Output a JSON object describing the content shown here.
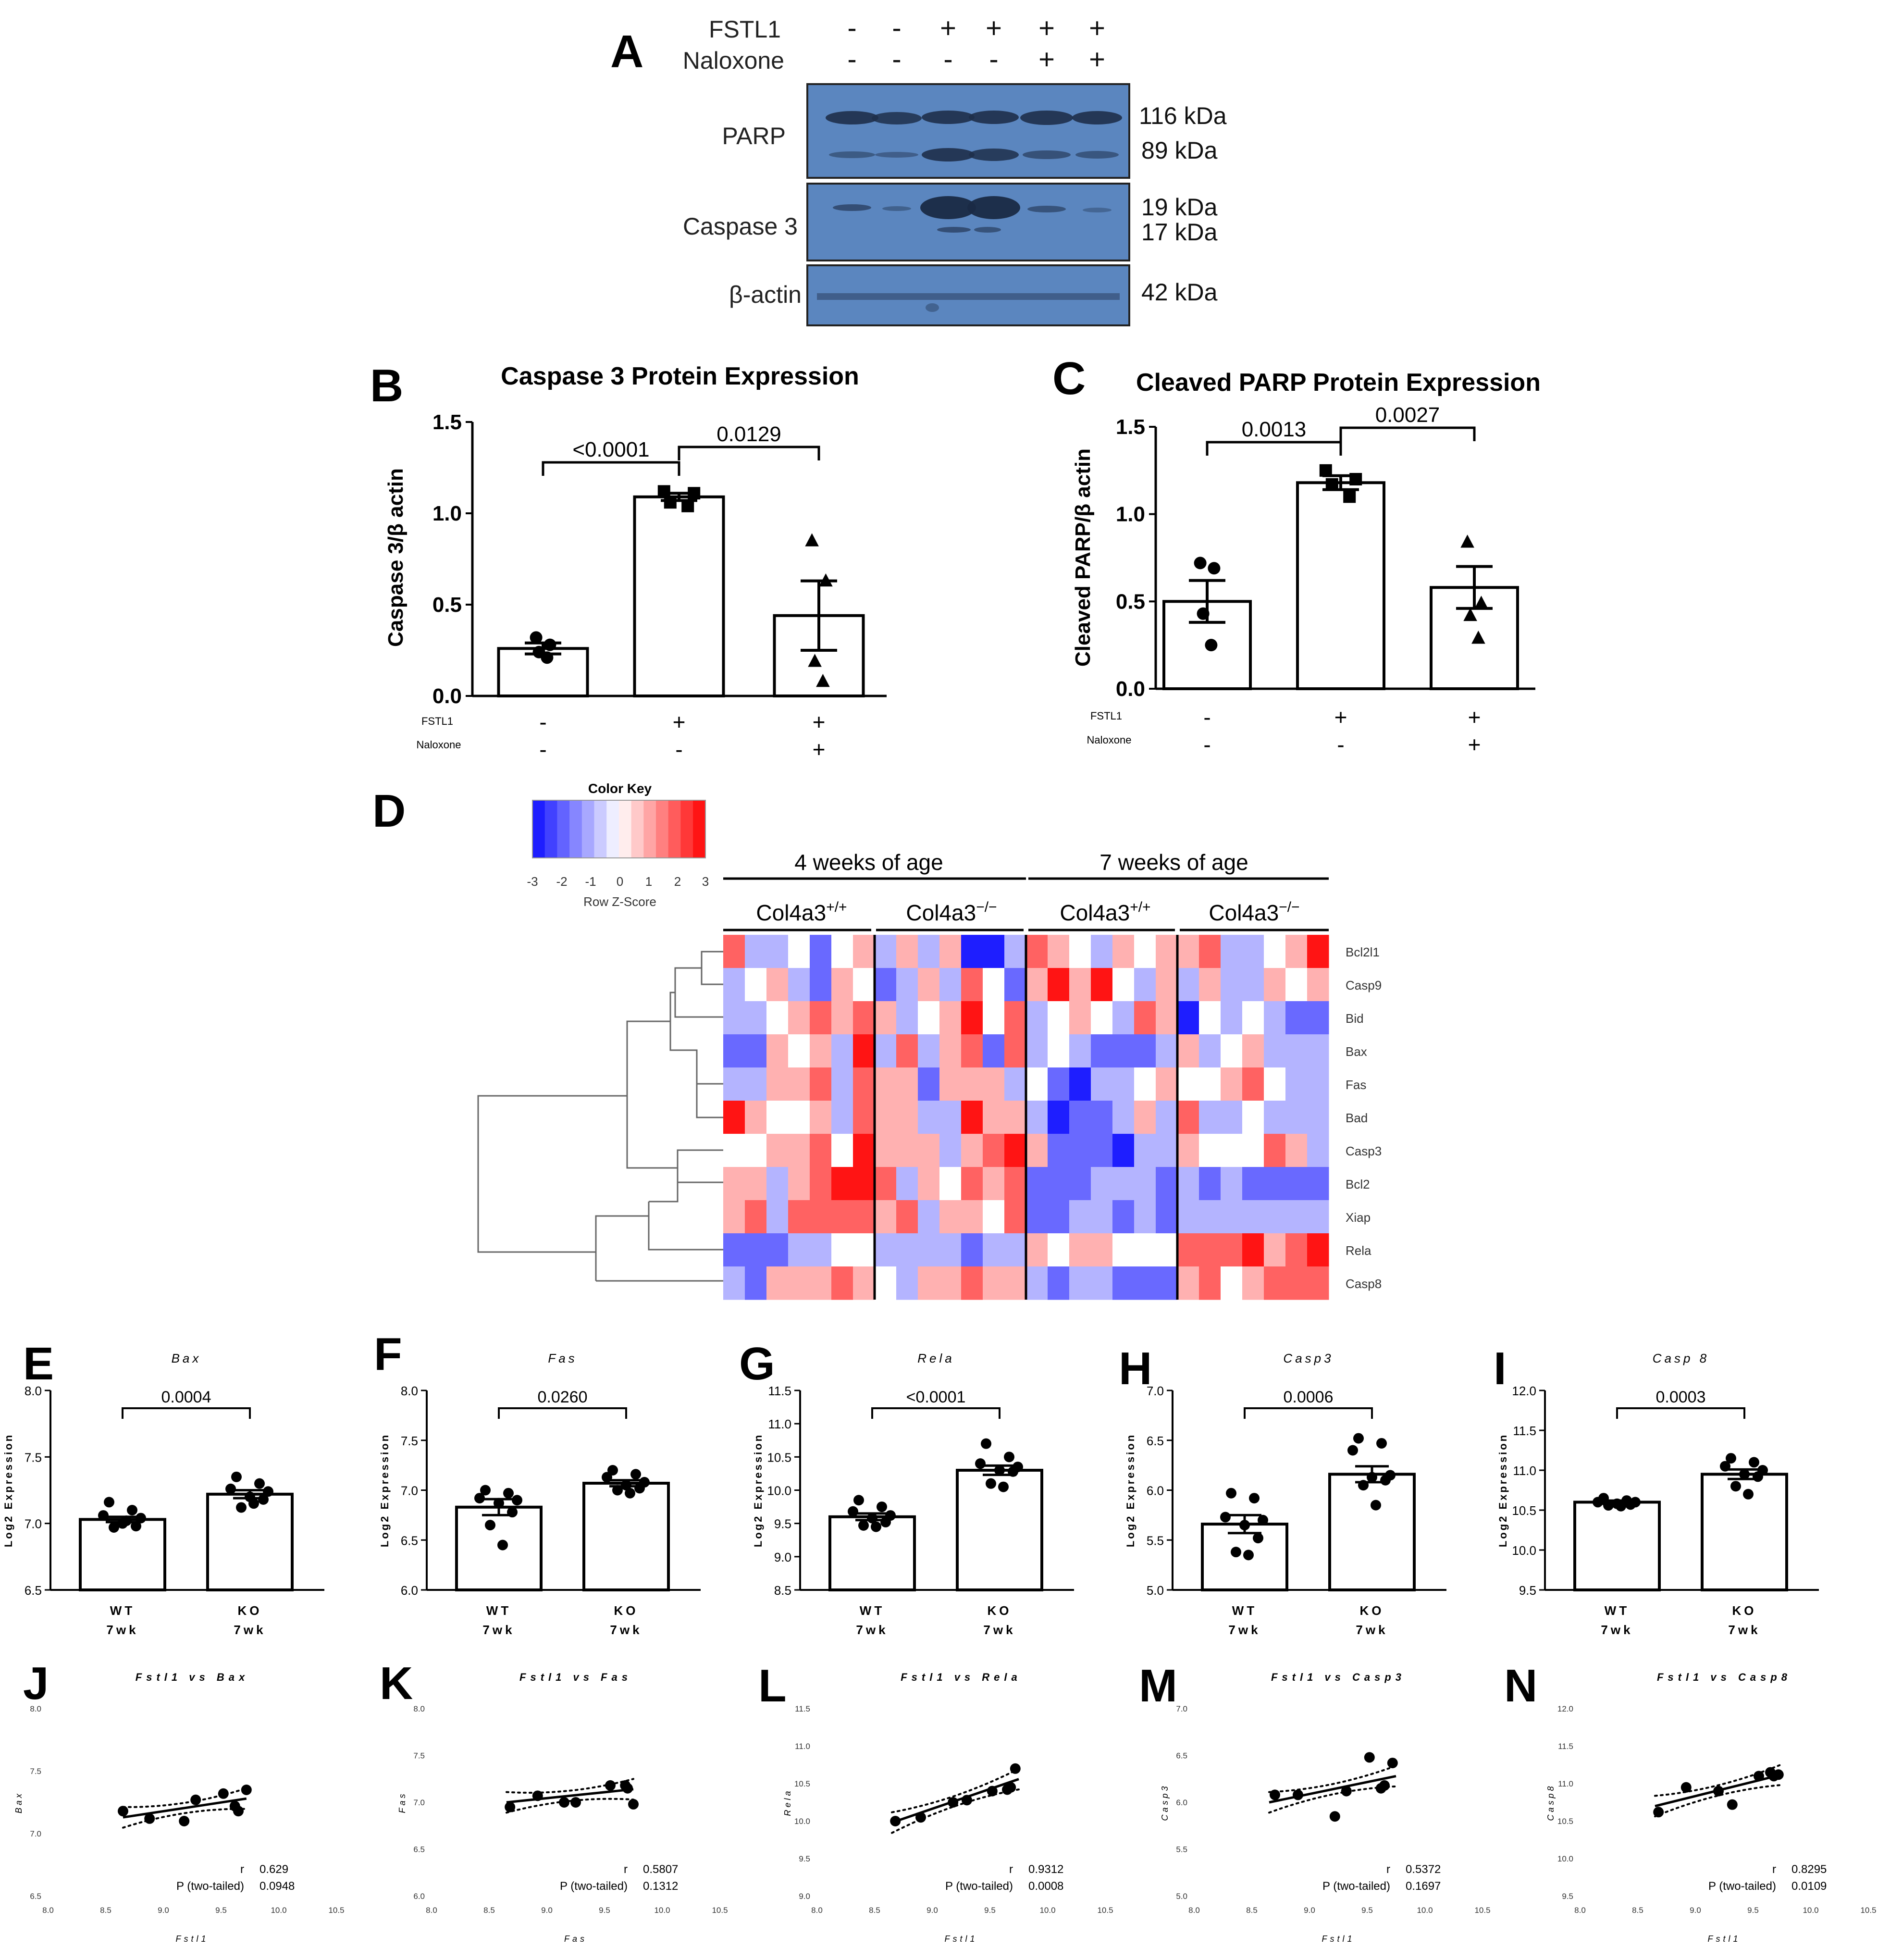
{
  "panel_letters": {
    "A": "A",
    "B": "B",
    "C": "C",
    "D": "D",
    "E": "E",
    "F": "F",
    "G": "G",
    "H": "H",
    "I": "I",
    "J": "J",
    "K": "K",
    "L": "L",
    "M": "M",
    "N": "N"
  },
  "blot": {
    "lanes": [
      {
        "fstl1": "-",
        "naloxone": "-"
      },
      {
        "fstl1": "-",
        "naloxone": "-"
      },
      {
        "fstl1": "+",
        "naloxone": "-"
      },
      {
        "fstl1": "+",
        "naloxone": "-"
      },
      {
        "fstl1": "+",
        "naloxone": "+"
      },
      {
        "fstl1": "+",
        "naloxone": "+"
      }
    ],
    "row_fstl1": "FSTL1",
    "row_naloxone": "Naloxone",
    "rows": [
      {
        "label": "PARP",
        "sizes": [
          "116 kDa",
          "89 kDa"
        ]
      },
      {
        "label": "Caspase 3",
        "sizes": [
          "19 kDa",
          "17 kDa"
        ]
      },
      {
        "label": "β-actin",
        "sizes": [
          "42 kDa"
        ]
      }
    ]
  },
  "chart_data": [
    {
      "panel": "B",
      "type": "bar",
      "title": "Caspase 3 Protein Expression",
      "ylabel": "Caspase 3/β actin",
      "ylim": [
        0,
        1.5
      ],
      "yticks": [
        "0.0",
        "0.5",
        "1.0",
        "1.5"
      ],
      "categories": [
        {
          "fstl1": "-",
          "naloxone": "-"
        },
        {
          "fstl1": "+",
          "naloxone": "-"
        },
        {
          "fstl1": "+",
          "naloxone": "+"
        }
      ],
      "row_labels": [
        "FSTL1",
        "Naloxone"
      ],
      "values": [
        0.26,
        1.09,
        0.44
      ],
      "sem": [
        0.03,
        0.02,
        0.19
      ],
      "points": [
        [
          0.32,
          0.28,
          0.24,
          0.21
        ],
        [
          1.12,
          1.11,
          1.06,
          1.04
        ],
        [
          0.85,
          0.63,
          0.19,
          0.08
        ]
      ],
      "markers": [
        "circle",
        "square",
        "triangle"
      ],
      "comparisons": [
        {
          "from": 0,
          "to": 1,
          "label": "<0.0001"
        },
        {
          "from": 1,
          "to": 2,
          "label": "0.0129"
        }
      ]
    },
    {
      "panel": "C",
      "type": "bar",
      "title": "Cleaved PARP Protein Expression",
      "ylabel": "Cleaved PARP/β actin",
      "ylim": [
        0,
        1.5
      ],
      "yticks": [
        "0.0",
        "0.5",
        "1.0",
        "1.5"
      ],
      "categories": [
        {
          "fstl1": "-",
          "naloxone": "-"
        },
        {
          "fstl1": "+",
          "naloxone": "-"
        },
        {
          "fstl1": "+",
          "naloxone": "+"
        }
      ],
      "row_labels": [
        "FSTL1",
        "Naloxone"
      ],
      "values": [
        0.5,
        1.18,
        0.58
      ],
      "sem": [
        0.12,
        0.04,
        0.12
      ],
      "points": [
        [
          0.72,
          0.69,
          0.43,
          0.25
        ],
        [
          1.25,
          1.2,
          1.17,
          1.1
        ],
        [
          0.84,
          0.49,
          0.42,
          0.29
        ]
      ],
      "markers": [
        "circle",
        "square",
        "triangle"
      ],
      "comparisons": [
        {
          "from": 0,
          "to": 1,
          "label": "0.0013"
        },
        {
          "from": 1,
          "to": 2,
          "label": "0.0027"
        }
      ]
    },
    {
      "panel": "D",
      "type": "heatmap",
      "color_key_title": "Color Key",
      "color_key_label": "Row Z-Score",
      "color_key_ticks": [
        "-3",
        "-2",
        "-1",
        "0",
        "1",
        "2",
        "3"
      ],
      "age_groups": [
        "4 weeks of age",
        "7 weeks of age"
      ],
      "genotype_base": "Col4a3",
      "genotypes": [
        "+/+",
        "−/−",
        "+/+",
        "−/−"
      ],
      "genes": [
        "Bcl2l1",
        "Casp9",
        "Bid",
        "Bax",
        "Fas",
        "Bad",
        "Casp3",
        "Bcl2",
        "Xiap",
        "Rela",
        "Casp8"
      ],
      "values": [
        [
          2,
          -1,
          -1,
          0,
          -2,
          0,
          1,
          -1,
          1,
          -1,
          1,
          -3,
          -3,
          -1,
          2,
          1,
          0,
          -1,
          1,
          0,
          1,
          1,
          2,
          -1,
          -1,
          0,
          1,
          3
        ],
        [
          -1,
          0,
          1,
          -1,
          -2,
          1,
          0,
          -2,
          -1,
          1,
          -1,
          2,
          0,
          -2,
          1,
          3,
          1,
          3,
          0,
          -1,
          1,
          -1,
          1,
          -1,
          -1,
          1,
          0,
          1
        ],
        [
          -1,
          -1,
          0,
          1,
          2,
          1,
          2,
          1,
          -1,
          0,
          1,
          3,
          0,
          2,
          -1,
          0,
          1,
          0,
          -1,
          2,
          1,
          -3,
          0,
          -1,
          0,
          -1,
          -2,
          -2
        ],
        [
          -2,
          -2,
          1,
          0,
          1,
          -1,
          3,
          -1,
          2,
          -1,
          1,
          2,
          -2,
          2,
          -1,
          0,
          -1,
          -2,
          -2,
          -2,
          -1,
          1,
          -1,
          0,
          1,
          -1,
          -1,
          -1
        ],
        [
          -1,
          -1,
          1,
          1,
          2,
          -1,
          2,
          1,
          1,
          -2,
          1,
          1,
          1,
          -1,
          0,
          -2,
          -3,
          -1,
          -1,
          0,
          1,
          0,
          0,
          1,
          2,
          0,
          -1,
          -1
        ],
        [
          3,
          1,
          0,
          0,
          1,
          -1,
          2,
          1,
          1,
          -1,
          -1,
          3,
          1,
          1,
          -1,
          -3,
          -2,
          -2,
          -1,
          1,
          -1,
          2,
          -1,
          -1,
          0,
          -1,
          -1,
          -1
        ],
        [
          0,
          0,
          1,
          1,
          2,
          0,
          3,
          1,
          1,
          1,
          -1,
          1,
          2,
          3,
          1,
          -2,
          -2,
          -2,
          -3,
          -1,
          -1,
          1,
          0,
          0,
          0,
          2,
          1,
          -1
        ],
        [
          1,
          1,
          -1,
          1,
          2,
          3,
          3,
          2,
          -1,
          1,
          0,
          2,
          1,
          2,
          -2,
          -2,
          -2,
          -1,
          -1,
          -1,
          -2,
          -1,
          -2,
          -1,
          -2,
          -2,
          -2,
          -2
        ],
        [
          1,
          2,
          -1,
          2,
          2,
          2,
          2,
          1,
          2,
          -1,
          1,
          1,
          0,
          2,
          -2,
          -2,
          -1,
          -1,
          -2,
          -1,
          -2,
          -1,
          -1,
          -1,
          -1,
          -1,
          -1,
          -1
        ],
        [
          -2,
          -2,
          -2,
          -1,
          -1,
          0,
          0,
          -1,
          -1,
          -1,
          -1,
          -2,
          -1,
          -1,
          1,
          0,
          1,
          1,
          0,
          0,
          0,
          2,
          2,
          2,
          3,
          1,
          2,
          3
        ],
        [
          -1,
          -2,
          1,
          1,
          1,
          2,
          1,
          0,
          -1,
          1,
          1,
          2,
          1,
          1,
          -1,
          -2,
          -1,
          -1,
          -2,
          -2,
          -2,
          1,
          2,
          0,
          1,
          2,
          2,
          2
        ]
      ]
    },
    {
      "panel": "E",
      "type": "bar",
      "title": "Bax",
      "ylabel": "Log2 Expression",
      "ylim": [
        6.5,
        8.0
      ],
      "yticks": [
        "6.5",
        "7.0",
        "7.5",
        "8.0"
      ],
      "categories": [
        [
          "WT",
          "7wk"
        ],
        [
          "KO",
          "7wk"
        ]
      ],
      "values": [
        7.03,
        7.22
      ],
      "sem": [
        0.02,
        0.03
      ],
      "points": [
        [
          7.16,
          7.1,
          7.06,
          7.04,
          7.0,
          6.98,
          6.97,
          7.02
        ],
        [
          7.35,
          7.3,
          7.26,
          7.24,
          7.2,
          7.18,
          7.12,
          7.15
        ]
      ],
      "comparisons": [
        {
          "from": 0,
          "to": 1,
          "label": "0.0004"
        }
      ]
    },
    {
      "panel": "F",
      "type": "bar",
      "title": "Fas",
      "ylabel": "Log2 Expression",
      "ylim": [
        6.0,
        8.0
      ],
      "yticks": [
        "6.0",
        "6.5",
        "7.0",
        "7.5",
        "8.0"
      ],
      "categories": [
        [
          "WT",
          "7wk"
        ],
        [
          "KO",
          "7wk"
        ]
      ],
      "values": [
        6.83,
        7.07
      ],
      "sem": [
        0.08,
        0.03
      ],
      "points": [
        [
          7.0,
          6.97,
          6.92,
          6.9,
          6.87,
          6.78,
          6.65,
          6.45
        ],
        [
          7.2,
          7.16,
          7.13,
          7.08,
          7.05,
          7.02,
          7.0,
          6.97
        ]
      ],
      "comparisons": [
        {
          "from": 0,
          "to": 1,
          "label": "0.0260"
        }
      ]
    },
    {
      "panel": "G",
      "type": "bar",
      "title": "Rela",
      "ylabel": "Log2 Expression",
      "ylim": [
        8.5,
        11.5
      ],
      "yticks": [
        "8.5",
        "9.0",
        "9.5",
        "10.0",
        "10.5",
        "11.0",
        "11.5"
      ],
      "categories": [
        [
          "WT",
          "7wk"
        ],
        [
          "KO",
          "7wk"
        ]
      ],
      "values": [
        9.6,
        10.3
      ],
      "sem": [
        0.05,
        0.07
      ],
      "points": [
        [
          9.85,
          9.75,
          9.68,
          9.62,
          9.58,
          9.52,
          9.47,
          9.45
        ],
        [
          10.7,
          10.5,
          10.4,
          10.35,
          10.3,
          10.28,
          10.1,
          10.05
        ]
      ],
      "comparisons": [
        {
          "from": 0,
          "to": 1,
          "label": "<0.0001"
        }
      ]
    },
    {
      "panel": "H",
      "type": "bar",
      "title": "Casp3",
      "ylabel": "Log2 Expression",
      "ylim": [
        5.0,
        7.0
      ],
      "yticks": [
        "5.0",
        "5.5",
        "6.0",
        "6.5",
        "7.0"
      ],
      "categories": [
        [
          "WT",
          "7wk"
        ],
        [
          "KO",
          "7wk"
        ]
      ],
      "values": [
        5.66,
        6.16
      ],
      "sem": [
        0.09,
        0.08
      ],
      "points": [
        [
          5.97,
          5.92,
          5.73,
          5.7,
          5.65,
          5.52,
          5.38,
          5.35
        ],
        [
          6.52,
          6.47,
          6.4,
          6.15,
          6.13,
          6.1,
          6.05,
          5.85
        ]
      ],
      "comparisons": [
        {
          "from": 0,
          "to": 1,
          "label": "0.0006"
        }
      ]
    },
    {
      "panel": "I",
      "type": "bar",
      "title": "Casp 8",
      "ylabel": "Log2 Expression",
      "ylim": [
        9.5,
        12.0
      ],
      "yticks": [
        "9.5",
        "10.0",
        "10.5",
        "11.0",
        "11.5",
        "12.0"
      ],
      "categories": [
        [
          "WT",
          "7wk"
        ],
        [
          "KO",
          "7wk"
        ]
      ],
      "values": [
        10.6,
        10.95
      ],
      "sem": [
        0.02,
        0.06
      ],
      "points": [
        [
          10.65,
          10.62,
          10.6,
          10.6,
          10.58,
          10.57,
          10.56,
          10.55
        ],
        [
          11.15,
          11.1,
          11.05,
          11.0,
          10.95,
          10.92,
          10.8,
          10.7
        ]
      ],
      "comparisons": [
        {
          "from": 0,
          "to": 1,
          "label": "0.0003"
        }
      ]
    },
    {
      "panel": "J",
      "type": "scatter",
      "title": "Fstl1 vs Bax",
      "xlabel": "Fstl1",
      "ylabel": "Bax",
      "xlim": [
        8.0,
        10.5
      ],
      "ylim": [
        6.5,
        8.0
      ],
      "xticks": [
        "8.0",
        "8.5",
        "9.0",
        "9.5",
        "10.0",
        "10.5"
      ],
      "yticks": [
        "6.5",
        "7.0",
        "7.5",
        "8.0"
      ],
      "x": [
        8.65,
        8.88,
        9.18,
        9.28,
        9.52,
        9.62,
        9.65,
        9.72
      ],
      "y": [
        7.18,
        7.12,
        7.1,
        7.27,
        7.32,
        7.22,
        7.18,
        7.35
      ],
      "fit": [
        [
          8.65,
          7.13
        ],
        [
          9.72,
          7.28
        ]
      ],
      "r_label": "r",
      "r": "0.629",
      "p_label": "P (two-tailed)",
      "p": "0.0948"
    },
    {
      "panel": "K",
      "type": "scatter",
      "title": "Fstl1 vs Fas",
      "xlabel": "Fas",
      "ylabel": "Fas",
      "xlim": [
        8.0,
        10.5
      ],
      "ylim": [
        6.0,
        8.0
      ],
      "xticks": [
        "8.0",
        "8.5",
        "9.0",
        "9.5",
        "10.0",
        "10.5"
      ],
      "yticks": [
        "6.0",
        "6.5",
        "7.0",
        "7.5",
        "8.0"
      ],
      "x": [
        8.68,
        8.92,
        9.15,
        9.25,
        9.55,
        9.68,
        9.7,
        9.75
      ],
      "y": [
        6.95,
        7.07,
        7.0,
        7.0,
        7.18,
        7.18,
        7.15,
        6.98
      ],
      "fit": [
        [
          8.65,
          7.0
        ],
        [
          9.75,
          7.14
        ]
      ],
      "r_label": "r",
      "r": "0.5807",
      "p_label": "P (two-tailed)",
      "p": "0.1312"
    },
    {
      "panel": "L",
      "type": "scatter",
      "title": "Fstl1 vs Rela",
      "xlabel": "Fstl1",
      "ylabel": "Rela",
      "xlim": [
        8.0,
        10.5
      ],
      "ylim": [
        9.0,
        11.5
      ],
      "xticks": [
        "8.0",
        "8.5",
        "9.0",
        "9.5",
        "10.0",
        "10.5"
      ],
      "yticks": [
        "9.0",
        "9.5",
        "10.0",
        "10.5",
        "11.0",
        "11.5"
      ],
      "x": [
        8.68,
        8.9,
        9.18,
        9.3,
        9.52,
        9.65,
        9.68,
        9.72
      ],
      "y": [
        10.0,
        10.05,
        10.25,
        10.28,
        10.4,
        10.42,
        10.45,
        10.7
      ],
      "fit": [
        [
          8.65,
          9.98
        ],
        [
          9.75,
          10.56
        ]
      ],
      "r_label": "r",
      "r": "0.9312",
      "p_label": "P (two-tailed)",
      "p": "0.0008"
    },
    {
      "panel": "M",
      "type": "scatter",
      "title": "Fstl1 vs Casp3",
      "xlabel": "Fstl1",
      "ylabel": "Casp3",
      "xlim": [
        8.0,
        10.5
      ],
      "ylim": [
        5.0,
        7.0
      ],
      "xticks": [
        "8.0",
        "8.5",
        "9.0",
        "9.5",
        "10.0",
        "10.5"
      ],
      "yticks": [
        "5.0",
        "5.5",
        "6.0",
        "6.5",
        "7.0"
      ],
      "x": [
        8.7,
        8.9,
        9.22,
        9.32,
        9.52,
        9.62,
        9.65,
        9.72
      ],
      "y": [
        6.08,
        6.08,
        5.85,
        6.12,
        6.48,
        6.15,
        6.18,
        6.42
      ],
      "fit": [
        [
          8.65,
          6.0
        ],
        [
          9.75,
          6.28
        ]
      ],
      "r_label": "r",
      "r": "0.5372",
      "p_label": "P (two-tailed)",
      "p": "0.1697"
    },
    {
      "panel": "N",
      "type": "scatter",
      "title": "Fstl1 vs Casp8",
      "xlabel": "Fstl1",
      "ylabel": "Casp8",
      "xlim": [
        8.0,
        10.5
      ],
      "ylim": [
        9.5,
        12.0
      ],
      "xticks": [
        "8.0",
        "8.5",
        "9.0",
        "9.5",
        "10.0",
        "10.5"
      ],
      "yticks": [
        "9.5",
        "10.0",
        "10.5",
        "11.0",
        "11.5",
        "12.0"
      ],
      "x": [
        8.68,
        8.92,
        9.2,
        9.32,
        9.55,
        9.65,
        9.68,
        9.72
      ],
      "y": [
        10.62,
        10.95,
        10.9,
        10.72,
        11.1,
        11.15,
        11.1,
        11.12
      ],
      "fit": [
        [
          8.65,
          10.7
        ],
        [
          9.75,
          11.12
        ]
      ],
      "r_label": "r",
      "r": "0.8295",
      "p_label": "P (two-tailed)",
      "p": "0.0109"
    }
  ]
}
